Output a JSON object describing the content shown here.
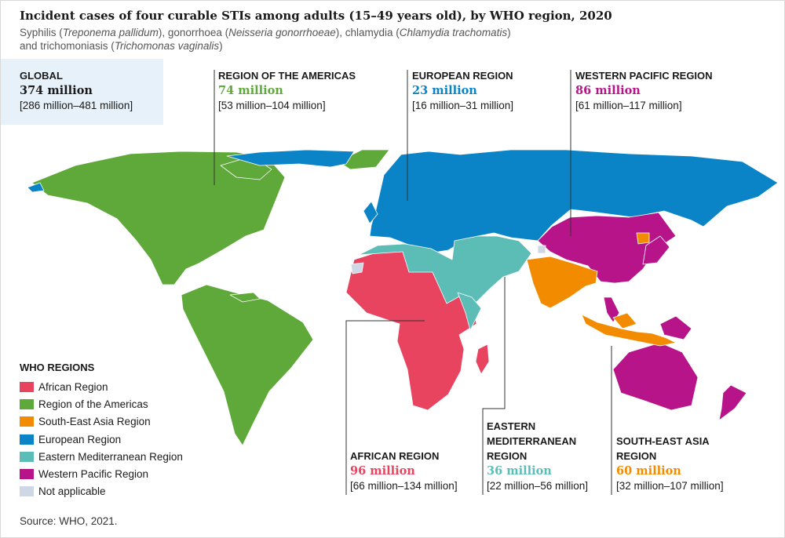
{
  "title": "Incident cases of four curable STIs among adults (15–49 years old), by WHO region, 2020",
  "subtitle": {
    "p1": "Syphilis (",
    "syphilis": "Treponema pallidum",
    "p2": "), gonorrhoea (",
    "gonorrhoea": "Neisseria gonorrhoeae",
    "p3": "), chlamydia (",
    "chlamydia": "Chlamydia trachomatis",
    "p4": ")",
    "p5": "and trichomoniasis (",
    "trichomoniasis": "Trichomonas vaginalis",
    "p6": ")"
  },
  "colors": {
    "african": "#e8435f",
    "americas": "#5fa83a",
    "sea": "#f28b00",
    "european": "#0a84c6",
    "emr": "#5bbdb6",
    "wpr": "#b8148a",
    "na": "#cfd6e4",
    "global_bg": "#e6f1fa"
  },
  "callouts": {
    "global": {
      "head": "GLOBAL",
      "value": "374 million",
      "range": "[286 million–481 million]"
    },
    "americas": {
      "head": "REGION OF THE AMERICAS",
      "value": "74 million",
      "range": "[53 million–104 million]"
    },
    "european": {
      "head": "EUROPEAN REGION",
      "value": "23 million",
      "range": "[16 million–31 million]"
    },
    "wpr": {
      "head": "WESTERN PACIFIC REGION",
      "value": "86 million",
      "range": "[61 million–117 million]"
    },
    "african": {
      "head": "AFRICAN REGION",
      "value": "96 million",
      "range": "[66 million–134 million]"
    },
    "emr": {
      "head1": "EASTERN",
      "head2": "MEDITERRANEAN",
      "head3": "REGION",
      "value": "36 million",
      "range": "[22 million–56 million]"
    },
    "sea": {
      "head1": "SOUTH-EAST ASIA",
      "head2": "REGION",
      "value": "60 million",
      "range": "[32 million–107 million]"
    }
  },
  "legend": {
    "title": "WHO REGIONS",
    "items": [
      {
        "label": "African Region",
        "color": "#e8435f"
      },
      {
        "label": "Region of the Americas",
        "color": "#5fa83a"
      },
      {
        "label": "South-East Asia Region",
        "color": "#f28b00"
      },
      {
        "label": "European Region",
        "color": "#0a84c6"
      },
      {
        "label": "Eastern Mediterranean Region",
        "color": "#5bbdb6"
      },
      {
        "label": "Western Pacific Region",
        "color": "#b8148a"
      },
      {
        "label": "Not applicable",
        "color": "#cfd6e4"
      }
    ]
  },
  "source": "Source: WHO, 2021."
}
